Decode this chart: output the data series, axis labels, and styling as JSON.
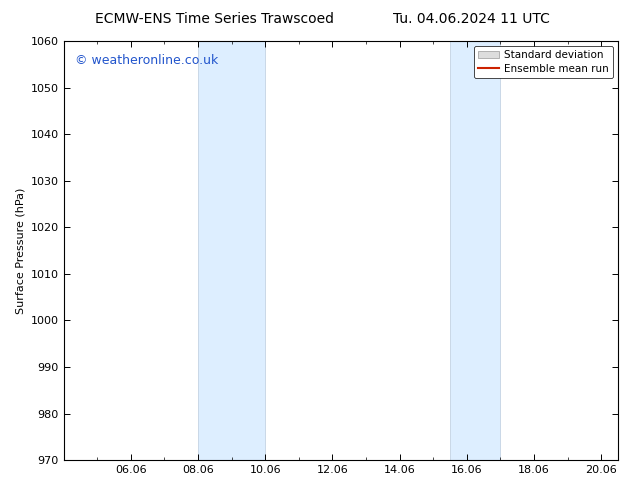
{
  "title_left": "ECMW-ENS Time Series Trawscoed",
  "title_right": "Tu. 04.06.2024 11 UTC",
  "ylabel": "Surface Pressure (hPa)",
  "ylim": [
    970,
    1060
  ],
  "yticks": [
    970,
    980,
    990,
    1000,
    1010,
    1020,
    1030,
    1040,
    1050,
    1060
  ],
  "xlim_days": [
    4.0,
    20.5
  ],
  "xtick_labels": [
    "06.06",
    "08.06",
    "10.06",
    "12.06",
    "14.06",
    "16.06",
    "18.06",
    "20.06"
  ],
  "xtick_positions": [
    6.0,
    8.0,
    10.0,
    12.0,
    14.0,
    16.0,
    18.0,
    20.0
  ],
  "shaded_bands": [
    {
      "x_start": 8.0,
      "x_end": 10.0
    },
    {
      "x_start": 15.5,
      "x_end": 17.0
    }
  ],
  "band_color": "#ddeeff",
  "band_edge_color": "#bbccdd",
  "watermark_text": "© weatheronline.co.uk",
  "watermark_color": "#2255cc",
  "watermark_fontsize": 9,
  "legend_std_label": "Standard deviation",
  "legend_ens_label": "Ensemble mean run",
  "legend_std_color": "#dddddd",
  "legend_ens_color": "#cc2200",
  "background_color": "#ffffff",
  "title_fontsize": 10,
  "axis_fontsize": 8,
  "tick_fontsize": 8
}
